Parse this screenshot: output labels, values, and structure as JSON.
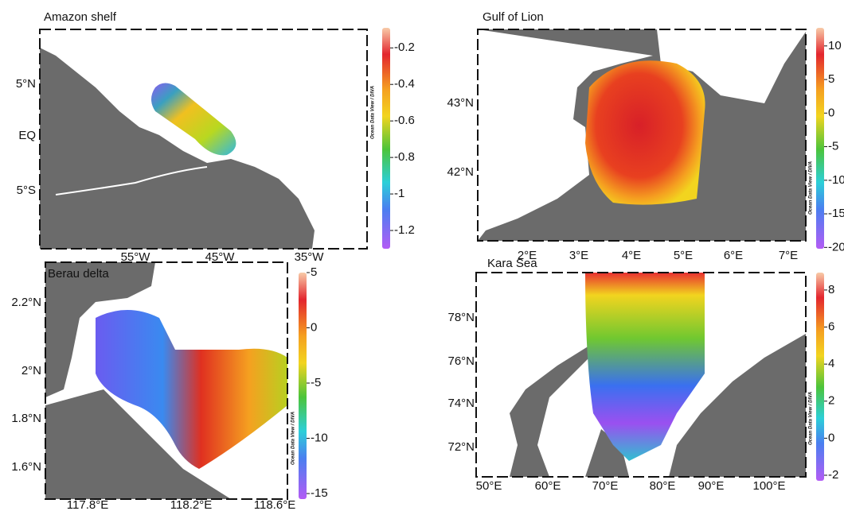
{
  "panels": [
    {
      "title": "Amazon shelf",
      "watermark": "Ocean Data View / DIVA",
      "lat_labels": [
        "5°N",
        "EQ",
        "5°S"
      ],
      "lon_labels": [
        "55°W",
        "45°W",
        "35°W"
      ],
      "colorbar": {
        "range": [
          -1.3,
          -0.09
        ],
        "ticks": [
          -0.2,
          -0.4,
          -0.6,
          -0.8,
          -1,
          -1.2
        ]
      }
    },
    {
      "title": "Gulf of Lion",
      "watermark": "Ocean Data View / DIVA",
      "lat_labels": [
        "43°N",
        "42°N"
      ],
      "lon_labels": [
        "2°E",
        "3°E",
        "4°E",
        "5°E",
        "6°E",
        "7°E"
      ],
      "colorbar": {
        "range": [
          -20.2,
          12.7
        ],
        "ticks": [
          10,
          5,
          0,
          -5,
          -10,
          -15,
          -20
        ]
      }
    },
    {
      "title": "Berau delta",
      "watermark": "Ocean Data View / DIVA",
      "lat_labels": [
        "2.2°N",
        "2°N",
        "1.8°N",
        "1.6°N"
      ],
      "lon_labels": [
        "117.8°E",
        "118.2°E",
        "118.6°E"
      ],
      "colorbar": {
        "range": [
          -15.5,
          5
        ],
        "ticks": [
          5,
          0,
          -5,
          -10,
          -15
        ]
      }
    },
    {
      "title": "Kara Sea",
      "watermark": "Ocean Data View / DIVA",
      "lat_labels": [
        "78°N",
        "76°N",
        "74°N",
        "72°N"
      ],
      "lon_labels": [
        "50°E",
        "60°E",
        "70°E",
        "80°E",
        "90°E",
        "100°E"
      ],
      "colorbar": {
        "range": [
          -2.3,
          8.94
        ],
        "ticks": [
          8,
          6,
          4,
          2,
          0,
          -2
        ]
      }
    }
  ]
}
